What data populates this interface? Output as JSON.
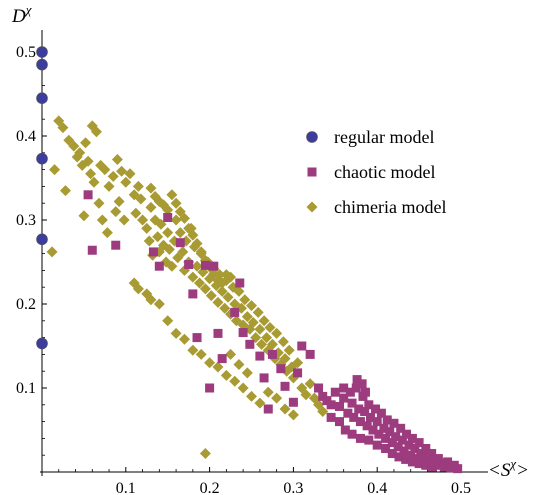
{
  "chart_data": {
    "type": "scatter",
    "xlabel": "<Sχ>",
    "ylabel": "Dχ",
    "xlim": [
      0,
      0.5
    ],
    "ylim": [
      0,
      0.5
    ],
    "x_ticks": [
      "0.1",
      "0.2",
      "0.3",
      "0.4",
      "0.5"
    ],
    "y_ticks": [
      "0.1",
      "0.2",
      "0.3",
      "0.4",
      "0.5"
    ],
    "grid": false,
    "legend_position": "right",
    "series": [
      {
        "name": "regular model",
        "marker": "circle",
        "color": "#3d3d9e",
        "points": [
          [
            0,
            0.5
          ],
          [
            0,
            0.485
          ],
          [
            0,
            0.445
          ],
          [
            0,
            0.373
          ],
          [
            0,
            0.277
          ],
          [
            0,
            0.153
          ]
        ]
      },
      {
        "name": "chaotic model",
        "marker": "square",
        "color": "#9c3b7e",
        "points": [
          [
            0.055,
            0.33
          ],
          [
            0.06,
            0.264
          ],
          [
            0.088,
            0.27
          ],
          [
            0.133,
            0.262
          ],
          [
            0.14,
            0.245
          ],
          [
            0.15,
            0.303
          ],
          [
            0.165,
            0.273
          ],
          [
            0.175,
            0.247
          ],
          [
            0.18,
            0.212
          ],
          [
            0.185,
            0.16
          ],
          [
            0.195,
            0.246
          ],
          [
            0.2,
            0.1
          ],
          [
            0.205,
            0.245
          ],
          [
            0.21,
            0.165
          ],
          [
            0.215,
            0.135
          ],
          [
            0.23,
            0.19
          ],
          [
            0.236,
            0.225
          ],
          [
            0.24,
            0.166
          ],
          [
            0.248,
            0.152
          ],
          [
            0.26,
            0.138
          ],
          [
            0.265,
            0.112
          ],
          [
            0.27,
            0.075
          ],
          [
            0.275,
            0.14
          ],
          [
            0.285,
            0.123
          ],
          [
            0.29,
            0.102
          ],
          [
            0.3,
            0.083
          ],
          [
            0.305,
            0.118
          ],
          [
            0.31,
            0.15
          ],
          [
            0.32,
            0.14
          ],
          [
            0.33,
            0.1
          ],
          [
            0.335,
            0.09
          ],
          [
            0.34,
            0.085
          ],
          [
            0.345,
            0.08
          ],
          [
            0.35,
            0.095
          ],
          [
            0.355,
            0.078
          ],
          [
            0.36,
            0.088
          ],
          [
            0.365,
            0.07
          ],
          [
            0.37,
            0.082
          ],
          [
            0.372,
            0.065
          ],
          [
            0.375,
            0.1
          ],
          [
            0.378,
            0.075
          ],
          [
            0.38,
            0.06
          ],
          [
            0.383,
            0.09
          ],
          [
            0.385,
            0.072
          ],
          [
            0.388,
            0.055
          ],
          [
            0.39,
            0.08
          ],
          [
            0.392,
            0.065
          ],
          [
            0.395,
            0.05
          ],
          [
            0.398,
            0.075
          ],
          [
            0.4,
            0.06
          ],
          [
            0.402,
            0.045
          ],
          [
            0.405,
            0.07
          ],
          [
            0.408,
            0.052
          ],
          [
            0.41,
            0.04
          ],
          [
            0.412,
            0.062
          ],
          [
            0.415,
            0.048
          ],
          [
            0.418,
            0.035
          ],
          [
            0.42,
            0.058
          ],
          [
            0.422,
            0.042
          ],
          [
            0.425,
            0.03
          ],
          [
            0.428,
            0.052
          ],
          [
            0.43,
            0.038
          ],
          [
            0.432,
            0.025
          ],
          [
            0.435,
            0.045
          ],
          [
            0.438,
            0.032
          ],
          [
            0.44,
            0.02
          ],
          [
            0.442,
            0.04
          ],
          [
            0.445,
            0.028
          ],
          [
            0.448,
            0.016
          ],
          [
            0.45,
            0.035
          ],
          [
            0.452,
            0.022
          ],
          [
            0.455,
            0.012
          ],
          [
            0.458,
            0.028
          ],
          [
            0.46,
            0.018
          ],
          [
            0.462,
            0.01
          ],
          [
            0.465,
            0.022
          ],
          [
            0.468,
            0.014
          ],
          [
            0.47,
            0.008
          ],
          [
            0.473,
            0.016
          ],
          [
            0.476,
            0.01
          ],
          [
            0.48,
            0.006
          ],
          [
            0.484,
            0.012
          ],
          [
            0.488,
            0.005
          ],
          [
            0.492,
            0.008
          ],
          [
            0.496,
            0.004
          ],
          [
            0.345,
            0.065
          ],
          [
            0.355,
            0.06
          ],
          [
            0.362,
            0.05
          ],
          [
            0.37,
            0.045
          ],
          [
            0.38,
            0.04
          ],
          [
            0.39,
            0.038
          ],
          [
            0.4,
            0.032
          ],
          [
            0.41,
            0.028
          ],
          [
            0.418,
            0.022
          ],
          [
            0.426,
            0.018
          ],
          [
            0.434,
            0.015
          ],
          [
            0.442,
            0.012
          ],
          [
            0.45,
            0.01
          ],
          [
            0.458,
            0.008
          ],
          [
            0.466,
            0.006
          ],
          [
            0.36,
            0.1
          ],
          [
            0.368,
            0.095
          ],
          [
            0.376,
            0.11
          ],
          [
            0.382,
            0.105
          ],
          [
            0.386,
            0.095
          ]
        ]
      },
      {
        "name": "chimeria model",
        "marker": "diamond",
        "color": "#a89b33",
        "points": [
          [
            0.012,
            0.262
          ],
          [
            0.015,
            0.36
          ],
          [
            0.02,
            0.418
          ],
          [
            0.025,
            0.41
          ],
          [
            0.028,
            0.335
          ],
          [
            0.032,
            0.395
          ],
          [
            0.038,
            0.388
          ],
          [
            0.042,
            0.375
          ],
          [
            0.045,
            0.38
          ],
          [
            0.048,
            0.365
          ],
          [
            0.05,
            0.305
          ],
          [
            0.052,
            0.392
          ],
          [
            0.055,
            0.37
          ],
          [
            0.058,
            0.355
          ],
          [
            0.06,
            0.412
          ],
          [
            0.062,
            0.345
          ],
          [
            0.065,
            0.405
          ],
          [
            0.068,
            0.32
          ],
          [
            0.07,
            0.365
          ],
          [
            0.072,
            0.3
          ],
          [
            0.075,
            0.36
          ],
          [
            0.078,
            0.285
          ],
          [
            0.08,
            0.34
          ],
          [
            0.085,
            0.352
          ],
          [
            0.088,
            0.31
          ],
          [
            0.09,
            0.372
          ],
          [
            0.092,
            0.322
          ],
          [
            0.095,
            0.358
          ],
          [
            0.098,
            0.3
          ],
          [
            0.1,
            0.345
          ],
          [
            0.105,
            0.355
          ],
          [
            0.11,
            0.33
          ],
          [
            0.112,
            0.308
          ],
          [
            0.115,
            0.34
          ],
          [
            0.118,
            0.325
          ],
          [
            0.12,
            0.3
          ],
          [
            0.125,
            0.29
          ],
          [
            0.128,
            0.275
          ],
          [
            0.13,
            0.315
          ],
          [
            0.132,
            0.258
          ],
          [
            0.135,
            0.3
          ],
          [
            0.138,
            0.28
          ],
          [
            0.14,
            0.262
          ],
          [
            0.142,
            0.295
          ],
          [
            0.145,
            0.27
          ],
          [
            0.148,
            0.25
          ],
          [
            0.15,
            0.285
          ],
          [
            0.152,
            0.265
          ],
          [
            0.155,
            0.245
          ],
          [
            0.158,
            0.275
          ],
          [
            0.16,
            0.3
          ],
          [
            0.162,
            0.255
          ],
          [
            0.165,
            0.285
          ],
          [
            0.168,
            0.262
          ],
          [
            0.17,
            0.24
          ],
          [
            0.172,
            0.275
          ],
          [
            0.175,
            0.25
          ],
          [
            0.178,
            0.29
          ],
          [
            0.18,
            0.232
          ],
          [
            0.182,
            0.268
          ],
          [
            0.185,
            0.245
          ],
          [
            0.188,
            0.225
          ],
          [
            0.19,
            0.26
          ],
          [
            0.192,
            0.238
          ],
          [
            0.195,
            0.218
          ],
          [
            0.198,
            0.25
          ],
          [
            0.2,
            0.23
          ],
          [
            0.202,
            0.21
          ],
          [
            0.205,
            0.242
          ],
          [
            0.208,
            0.222
          ],
          [
            0.21,
            0.202
          ],
          [
            0.212,
            0.235
          ],
          [
            0.215,
            0.215
          ],
          [
            0.218,
            0.195
          ],
          [
            0.22,
            0.228
          ],
          [
            0.222,
            0.208
          ],
          [
            0.225,
            0.188
          ],
          [
            0.228,
            0.22
          ],
          [
            0.23,
            0.2
          ],
          [
            0.232,
            0.18
          ],
          [
            0.235,
            0.215
          ],
          [
            0.238,
            0.195
          ],
          [
            0.24,
            0.175
          ],
          [
            0.242,
            0.205
          ],
          [
            0.245,
            0.185
          ],
          [
            0.248,
            0.17
          ],
          [
            0.25,
            0.198
          ],
          [
            0.252,
            0.178
          ],
          [
            0.255,
            0.16
          ],
          [
            0.258,
            0.19
          ],
          [
            0.26,
            0.17
          ],
          [
            0.262,
            0.152
          ],
          [
            0.265,
            0.18
          ],
          [
            0.268,
            0.16
          ],
          [
            0.27,
            0.145
          ],
          [
            0.272,
            0.172
          ],
          [
            0.275,
            0.152
          ],
          [
            0.278,
            0.135
          ],
          [
            0.28,
            0.165
          ],
          [
            0.282,
            0.142
          ],
          [
            0.285,
            0.128
          ],
          [
            0.288,
            0.155
          ],
          [
            0.29,
            0.135
          ],
          [
            0.292,
            0.12
          ],
          [
            0.295,
            0.145
          ],
          [
            0.298,
            0.125
          ],
          [
            0.3,
            0.112
          ],
          [
            0.305,
            0.13
          ],
          [
            0.31,
            0.1
          ],
          [
            0.315,
            0.092
          ],
          [
            0.32,
            0.105
          ],
          [
            0.325,
            0.088
          ],
          [
            0.33,
            0.08
          ],
          [
            0.335,
            0.072
          ],
          [
            0.155,
            0.33
          ],
          [
            0.16,
            0.32
          ],
          [
            0.165,
            0.31
          ],
          [
            0.17,
            0.302
          ],
          [
            0.175,
            0.29
          ],
          [
            0.18,
            0.282
          ],
          [
            0.185,
            0.272
          ],
          [
            0.19,
            0.262
          ],
          [
            0.195,
            0.252
          ],
          [
            0.2,
            0.244
          ],
          [
            0.205,
            0.236
          ],
          [
            0.21,
            0.228
          ],
          [
            0.215,
            0.225
          ],
          [
            0.22,
            0.235
          ],
          [
            0.225,
            0.232
          ],
          [
            0.15,
            0.312
          ],
          [
            0.145,
            0.318
          ],
          [
            0.14,
            0.322
          ],
          [
            0.135,
            0.328
          ],
          [
            0.13,
            0.338
          ],
          [
            0.11,
            0.225
          ],
          [
            0.115,
            0.218
          ],
          [
            0.125,
            0.212
          ],
          [
            0.13,
            0.205
          ],
          [
            0.14,
            0.2
          ],
          [
            0.15,
            0.18
          ],
          [
            0.16,
            0.165
          ],
          [
            0.17,
            0.158
          ],
          [
            0.18,
            0.145
          ],
          [
            0.19,
            0.14
          ],
          [
            0.2,
            0.13
          ],
          [
            0.21,
            0.125
          ],
          [
            0.22,
            0.115
          ],
          [
            0.23,
            0.108
          ],
          [
            0.24,
            0.1
          ],
          [
            0.25,
            0.09
          ],
          [
            0.26,
            0.082
          ],
          [
            0.27,
            0.095
          ],
          [
            0.28,
            0.088
          ],
          [
            0.29,
            0.075
          ],
          [
            0.3,
            0.068
          ],
          [
            0.195,
            0.022
          ],
          [
            0.225,
            0.14
          ],
          [
            0.235,
            0.128
          ],
          [
            0.245,
            0.118
          ]
        ]
      }
    ]
  }
}
